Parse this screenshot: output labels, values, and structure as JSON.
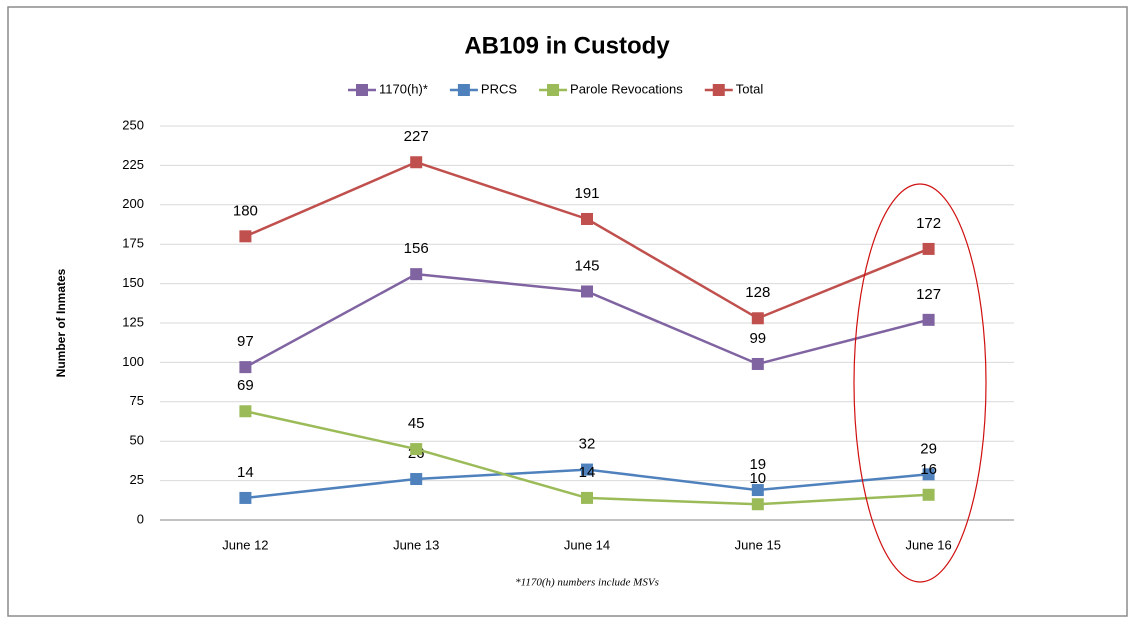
{
  "chart_data": {
    "type": "line",
    "title": "AB109 in Custody",
    "y_label": "Number of Inmates",
    "footnote": "*1170(h) numbers include MSVs",
    "categories": [
      "June 12",
      "June 13",
      "June 14",
      "June 15",
      "June 16"
    ],
    "series": [
      {
        "name": "1170(h)*",
        "color": "#8064a2",
        "values": [
          97,
          156,
          145,
          99,
          127
        ]
      },
      {
        "name": "PRCS",
        "color": "#4f81bd",
        "values": [
          14,
          26,
          32,
          19,
          29
        ]
      },
      {
        "name": "Parole Revocations",
        "color": "#9bbb59",
        "values": [
          69,
          45,
          14,
          10,
          16
        ]
      },
      {
        "name": "Total",
        "color": "#c0504d",
        "values": [
          180,
          227,
          191,
          128,
          172
        ]
      }
    ],
    "ylim": [
      0,
      250
    ],
    "yticks": [
      0,
      25,
      50,
      75,
      100,
      125,
      150,
      175,
      200,
      225,
      250
    ],
    "grid": true
  }
}
